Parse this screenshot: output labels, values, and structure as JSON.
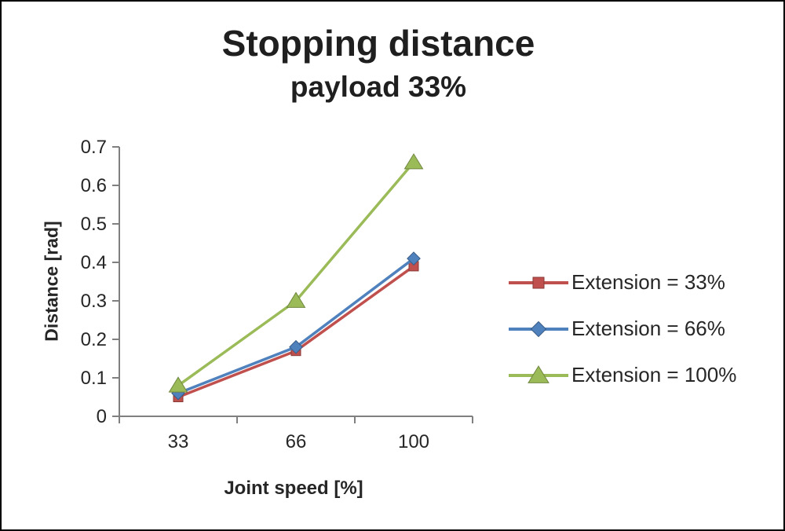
{
  "chart_data": {
    "type": "line",
    "title": "Stopping distance",
    "subtitle": "payload 33%",
    "xlabel": "Joint speed [%]",
    "ylabel": "Distance [rad]",
    "categories": [
      "33",
      "66",
      "100"
    ],
    "yticks": [
      "0",
      "0.1",
      "0.2",
      "0.3",
      "0.4",
      "0.5",
      "0.6",
      "0.7"
    ],
    "ylim": [
      0,
      0.7
    ],
    "grid": false,
    "legend_position": "right",
    "axis_color": "#808080",
    "series": [
      {
        "name": "Extension = 33%",
        "color": "#C0504D",
        "marker": "square",
        "values": [
          0.05,
          0.17,
          0.39
        ]
      },
      {
        "name": "Extension = 66%",
        "color": "#4F81BD",
        "marker": "diamond",
        "values": [
          0.06,
          0.18,
          0.41
        ]
      },
      {
        "name": "Extension = 100%",
        "color": "#9BBB59",
        "marker": "triangle",
        "values": [
          0.08,
          0.3,
          0.66
        ]
      }
    ]
  }
}
